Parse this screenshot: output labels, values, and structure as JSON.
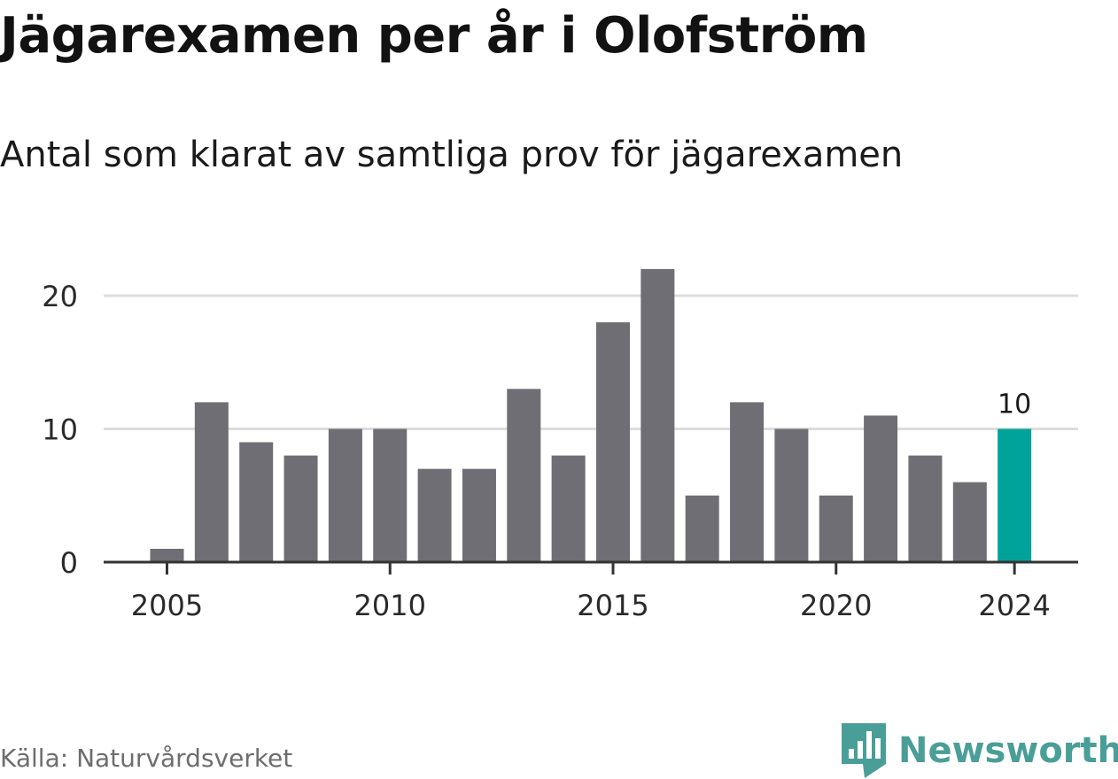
{
  "title": "Jägarexamen per år i Olofström",
  "subtitle": "Antal som klarat av samtliga prov för jägarexamen",
  "source": "Källa: Naturvårdsverket",
  "brand": {
    "name": "Newsworthy",
    "logo_icon": "newsworthy-logo-icon",
    "color": "#4a9e98"
  },
  "colors": {
    "bar": "#6e6e74",
    "highlight": "#00a399",
    "grid": "#dcdcdc",
    "axis": "#333333",
    "text": "#2a2a2a"
  },
  "chart_data": {
    "type": "bar",
    "x": [
      2005,
      2006,
      2007,
      2008,
      2009,
      2010,
      2011,
      2012,
      2013,
      2014,
      2015,
      2016,
      2017,
      2018,
      2019,
      2020,
      2021,
      2022,
      2023,
      2024
    ],
    "values": [
      1,
      12,
      9,
      8,
      10,
      10,
      7,
      7,
      13,
      8,
      18,
      22,
      5,
      12,
      10,
      5,
      11,
      8,
      6,
      10
    ],
    "highlight_index": 19,
    "highlight_label": "10",
    "xticks": [
      "2005",
      "2010",
      "2015",
      "2020",
      "2024"
    ],
    "yticks": [
      "0",
      "10",
      "20"
    ],
    "ylim": [
      0,
      22
    ],
    "grid": true,
    "legend": "none"
  }
}
